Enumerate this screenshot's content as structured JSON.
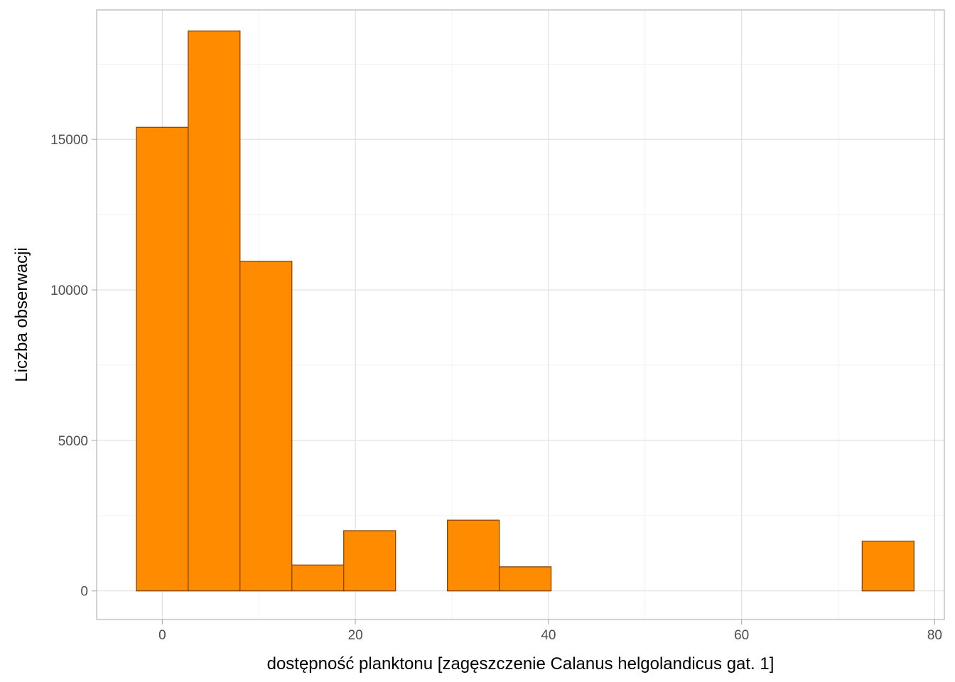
{
  "chart_data": {
    "type": "bar",
    "subtype": "histogram",
    "title": "",
    "xlabel": "dostępność planktonu [zagęszczenie Calanus helgolandicus gat. 1]",
    "ylabel": "Liczba obserwacji",
    "xlim": [
      -6.8,
      81
    ],
    "ylim": [
      -950,
      19300
    ],
    "x_ticks": [
      0,
      20,
      40,
      60,
      80
    ],
    "x_tick_labels": [
      "0",
      "20",
      "40",
      "60",
      "80"
    ],
    "y_ticks": [
      0,
      5000,
      10000,
      15000
    ],
    "y_tick_labels": [
      "0",
      "5000",
      "10000",
      "15000"
    ],
    "bin_width": 5.37,
    "bins": [
      {
        "x0": -2.68,
        "x1": 2.68,
        "count": 15400
      },
      {
        "x0": 2.68,
        "x1": 8.05,
        "count": 18600
      },
      {
        "x0": 8.05,
        "x1": 13.42,
        "count": 10950
      },
      {
        "x0": 13.42,
        "x1": 18.79,
        "count": 860
      },
      {
        "x0": 18.79,
        "x1": 24.16,
        "count": 2000
      },
      {
        "x0": 24.16,
        "x1": 29.53,
        "count": 0
      },
      {
        "x0": 29.53,
        "x1": 34.9,
        "count": 2350
      },
      {
        "x0": 34.9,
        "x1": 40.27,
        "count": 800
      },
      {
        "x0": 40.27,
        "x1": 45.64,
        "count": 0
      },
      {
        "x0": 45.64,
        "x1": 51.01,
        "count": 0
      },
      {
        "x0": 51.01,
        "x1": 56.38,
        "count": 0
      },
      {
        "x0": 56.38,
        "x1": 61.75,
        "count": 0
      },
      {
        "x0": 61.75,
        "x1": 67.12,
        "count": 0
      },
      {
        "x0": 67.12,
        "x1": 72.49,
        "count": 0
      },
      {
        "x0": 72.49,
        "x1": 77.86,
        "count": 1650
      }
    ],
    "grid": true,
    "legend": "none",
    "colors": {
      "fill": "#ff8c00",
      "outline": "#8b4500"
    }
  }
}
